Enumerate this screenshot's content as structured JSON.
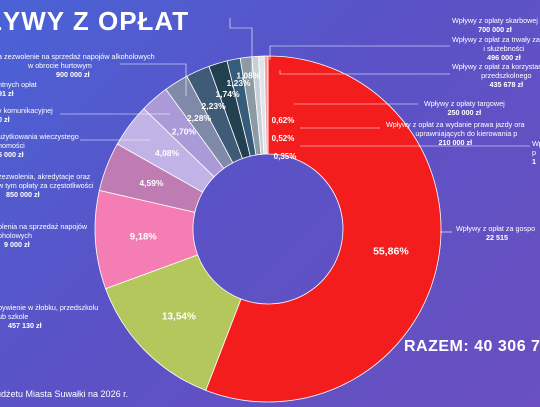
{
  "header": {
    "title": "ŁYWY Z OPŁAT"
  },
  "total_text": "RAZEM: 40 306 7",
  "footer_text": "udżetu Miasta Suwałki na 2026 r.",
  "labels_left": [
    {
      "lines": [
        "a zezwolenie na sprzedaż napojów alkoholowych",
        "w obrocie hurtowym"
      ],
      "value": "900 000 zł"
    },
    {
      "lines": [
        "ntnych opłat"
      ],
      "value": "91 zł"
    },
    {
      "lines": [
        "y komunikacyjnej"
      ],
      "value": "0 zł"
    },
    {
      "lines": [
        "użytkowania wieczystego",
        "homości"
      ],
      "value": "5 000 zł"
    },
    {
      "lines": [
        "zezwolenia, akredytacje oraz",
        "w tym opłaty za częstotliwości"
      ],
      "value": "850 000 zł"
    },
    {
      "lines": [
        "olenia na sprzedaż napojów",
        "oholowych"
      ],
      "value": "9 000 zł"
    },
    {
      "lines": [
        "bywienie w żłobku, przedszkolu",
        "ub szkole"
      ],
      "value": "457 130 zł"
    }
  ],
  "labels_right": [
    {
      "lines": [
        "Wpływy z opłaty skarbowej"
      ],
      "value": "700 000 zł"
    },
    {
      "lines": [
        "Wpływy z opłat za trwały zarząd,",
        "i służebności"
      ],
      "value": "496 000 zł"
    },
    {
      "lines": [
        "Wpływy z opłat za korzystanie z w",
        "przedszkolnego"
      ],
      "value": "435 678 zł"
    },
    {
      "lines": [
        "Wpływy z opłaty targowej"
      ],
      "value": "250 000 zł"
    },
    {
      "lines": [
        "Wpływy z opłat za wydanie prawa jazdy ora",
        "uprawniających do kierowania p"
      ],
      "value": "210 000 zł"
    },
    {
      "lines": [
        "Wp",
        "p"
      ],
      "value": "1"
    },
    {
      "lines": [
        "Wpływy z opłat za gospo"
      ],
      "value": "22 515"
    }
  ],
  "chart_data": {
    "type": "pie",
    "donut": true,
    "title": "",
    "slices": [
      {
        "label": "55,86%",
        "value": 55.86,
        "color": "#f41d1d"
      },
      {
        "label": "13,54%",
        "value": 13.54,
        "color": "#b4c75d"
      },
      {
        "label": "9,18%",
        "value": 9.18,
        "color": "#f47eb4"
      },
      {
        "label": "4,59%",
        "value": 4.59,
        "color": "#bf7cb3"
      },
      {
        "label": "4,08%",
        "value": 4.08,
        "color": "#c1b3e6"
      },
      {
        "label": "2,70%",
        "value": 2.7,
        "color": "#aa9ad8"
      },
      {
        "label": "2,28%",
        "value": 2.28,
        "color": "#7e8aa8"
      },
      {
        "label": "2,23%",
        "value": 2.23,
        "color": "#3f5b77"
      },
      {
        "label": "1,74%",
        "value": 1.74,
        "color": "#22404f"
      },
      {
        "label": "1,23%",
        "value": 1.23,
        "color": "#355c78"
      },
      {
        "label": "1,08%",
        "value": 1.08,
        "color": "#8c9aa6"
      },
      {
        "label": "0,62%",
        "value": 0.62,
        "color": "#c9cfd6"
      },
      {
        "label": "0,52%",
        "value": 0.52,
        "color": "#e1e4e8"
      },
      {
        "label": "0,35%",
        "value": 0.35,
        "color": "#f3a1a1"
      }
    ]
  }
}
